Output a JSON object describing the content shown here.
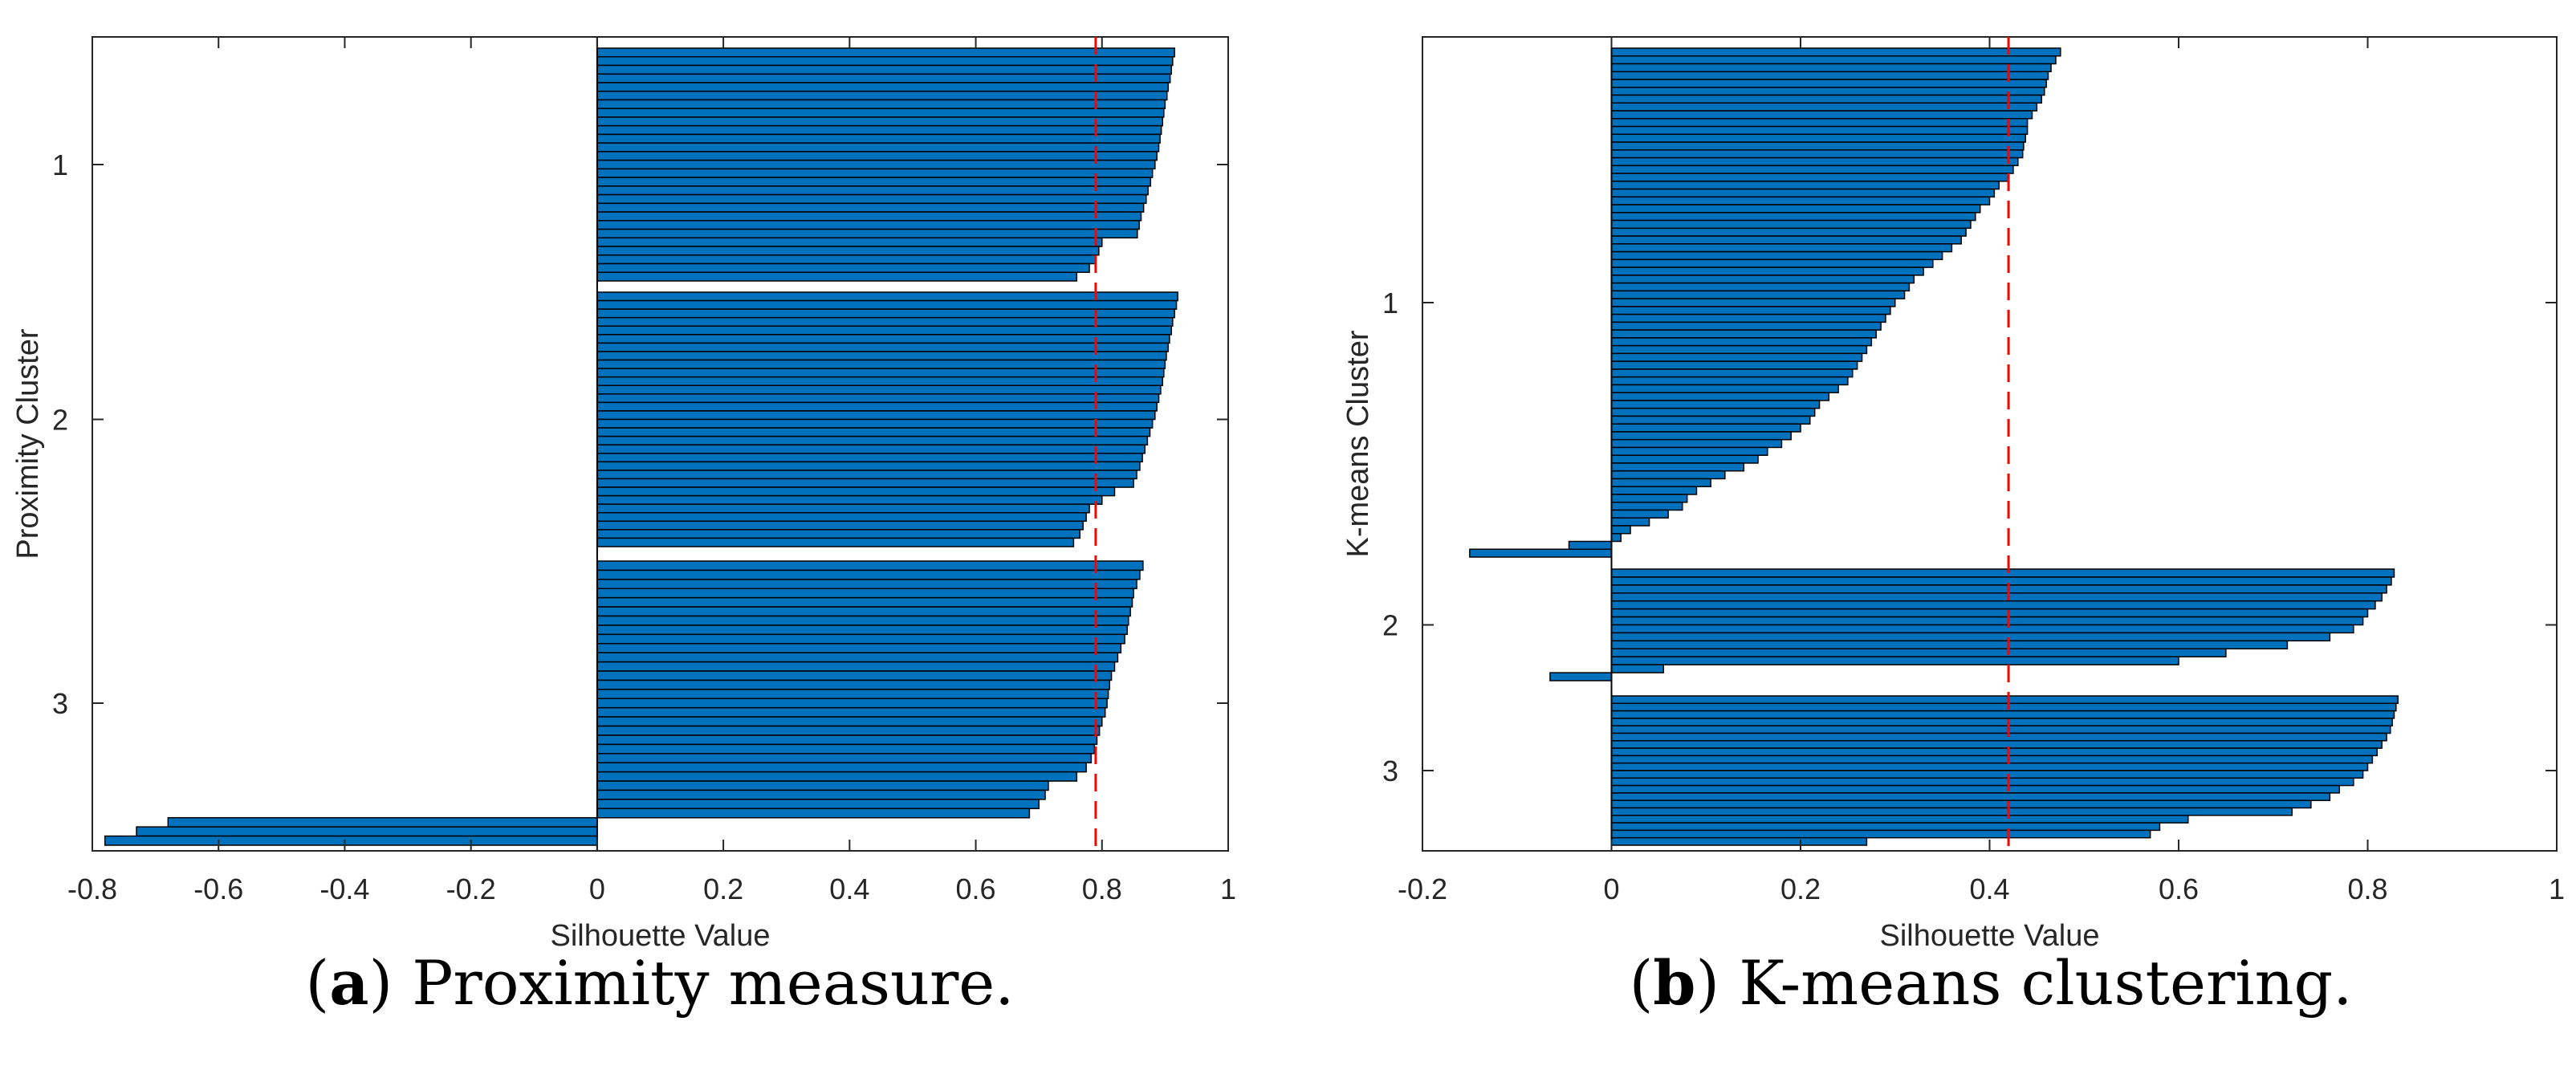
{
  "chart_data": [
    {
      "type": "bar",
      "orientation": "horizontal",
      "xlabel": "Silhouette Value",
      "ylabel": "Proximity Cluster",
      "xlim": [
        -0.8,
        1
      ],
      "xticks": [
        "-0.8",
        "-0.6",
        "-0.4",
        "-0.2",
        "0",
        "0.2",
        "0.4",
        "0.6",
        "0.8",
        "1"
      ],
      "yticks": [
        "1",
        "2",
        "3"
      ],
      "mean_line": 0.79,
      "caption_label": "a",
      "caption_text": " Proximity measure.",
      "clusters": [
        {
          "label": "1",
          "values": [
            0.915,
            0.912,
            0.91,
            0.908,
            0.905,
            0.903,
            0.9,
            0.898,
            0.896,
            0.894,
            0.892,
            0.89,
            0.887,
            0.884,
            0.88,
            0.877,
            0.873,
            0.87,
            0.866,
            0.862,
            0.859,
            0.856,
            0.8,
            0.795,
            0.79,
            0.78,
            0.76
          ]
        },
        {
          "label": "2",
          "values": [
            0.92,
            0.918,
            0.915,
            0.912,
            0.91,
            0.907,
            0.905,
            0.902,
            0.9,
            0.898,
            0.896,
            0.893,
            0.89,
            0.887,
            0.884,
            0.88,
            0.876,
            0.872,
            0.868,
            0.864,
            0.86,
            0.855,
            0.85,
            0.82,
            0.8,
            0.78,
            0.775,
            0.77,
            0.765,
            0.755
          ]
        },
        {
          "label": "3",
          "values": [
            0.865,
            0.86,
            0.855,
            0.85,
            0.848,
            0.845,
            0.842,
            0.84,
            0.836,
            0.83,
            0.825,
            0.82,
            0.815,
            0.812,
            0.81,
            0.808,
            0.805,
            0.8,
            0.796,
            0.792,
            0.788,
            0.783,
            0.775,
            0.76,
            0.715,
            0.71,
            0.7,
            0.685,
            -0.68,
            -0.73,
            -0.78
          ]
        }
      ]
    },
    {
      "type": "bar",
      "orientation": "horizontal",
      "xlabel": "Silhouette Value",
      "ylabel": "K-means Cluster",
      "xlim": [
        -0.2,
        1
      ],
      "xticks": [
        "-0.2",
        "0",
        "0.2",
        "0.4",
        "0.6",
        "0.8",
        "1"
      ],
      "yticks": [
        "1",
        "2",
        "3"
      ],
      "mean_line": 0.42,
      "caption_label": "b",
      "caption_text": " K-means clustering.",
      "clusters": [
        {
          "label": "1",
          "values": [
            0.475,
            0.47,
            0.465,
            0.462,
            0.46,
            0.458,
            0.455,
            0.45,
            0.445,
            0.44,
            0.44,
            0.438,
            0.436,
            0.435,
            0.43,
            0.425,
            0.42,
            0.41,
            0.405,
            0.4,
            0.39,
            0.385,
            0.38,
            0.375,
            0.37,
            0.36,
            0.35,
            0.34,
            0.33,
            0.32,
            0.315,
            0.31,
            0.3,
            0.295,
            0.29,
            0.285,
            0.28,
            0.275,
            0.27,
            0.265,
            0.26,
            0.255,
            0.25,
            0.24,
            0.23,
            0.22,
            0.215,
            0.21,
            0.2,
            0.19,
            0.18,
            0.165,
            0.155,
            0.14,
            0.12,
            0.105,
            0.09,
            0.08,
            0.075,
            0.06,
            0.04,
            0.02,
            0.01,
            -0.045,
            -0.15
          ]
        },
        {
          "label": "2",
          "values": [
            0.828,
            0.825,
            0.82,
            0.815,
            0.808,
            0.8,
            0.795,
            0.785,
            0.76,
            0.715,
            0.65,
            0.6,
            0.055,
            -0.065
          ]
        },
        {
          "label": "3",
          "values": [
            0.832,
            0.83,
            0.828,
            0.826,
            0.824,
            0.82,
            0.815,
            0.81,
            0.805,
            0.8,
            0.795,
            0.785,
            0.77,
            0.76,
            0.74,
            0.72,
            0.61,
            0.58,
            0.57,
            0.27
          ]
        }
      ]
    }
  ]
}
